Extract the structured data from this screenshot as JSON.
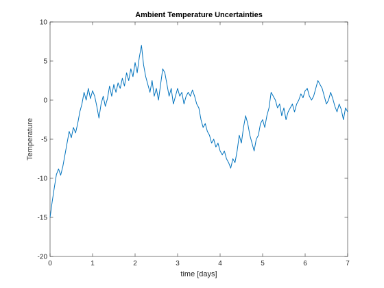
{
  "chart_data": {
    "type": "line",
    "title": "Ambient Temperature Uncertainties",
    "xlabel": "time [days]",
    "ylabel": "Temperature",
    "xlim": [
      0,
      7
    ],
    "ylim": [
      -20,
      10
    ],
    "xticks": [
      0,
      1,
      2,
      3,
      4,
      5,
      6,
      7
    ],
    "yticks": [
      -20,
      -15,
      -10,
      -5,
      0,
      5,
      10
    ],
    "grid": false,
    "line_color": "#0072BD",
    "series": [
      {
        "x": [
          0,
          0.05,
          0.1,
          0.15,
          0.2,
          0.25,
          0.3,
          0.35,
          0.4,
          0.45,
          0.5,
          0.55,
          0.6,
          0.65,
          0.7,
          0.75,
          0.8,
          0.85,
          0.9,
          0.95,
          1.0,
          1.05,
          1.1,
          1.15,
          1.2,
          1.25,
          1.3,
          1.35,
          1.4,
          1.45,
          1.5,
          1.55,
          1.6,
          1.65,
          1.7,
          1.75,
          1.8,
          1.85,
          1.9,
          1.95,
          2.0,
          2.05,
          2.1,
          2.15,
          2.2,
          2.25,
          2.3,
          2.35,
          2.4,
          2.45,
          2.5,
          2.55,
          2.6,
          2.65,
          2.7,
          2.75,
          2.8,
          2.85,
          2.9,
          2.95,
          3.0,
          3.05,
          3.1,
          3.15,
          3.2,
          3.25,
          3.3,
          3.35,
          3.4,
          3.45,
          3.5,
          3.55,
          3.6,
          3.65,
          3.7,
          3.75,
          3.8,
          3.85,
          3.9,
          3.95,
          4.0,
          4.05,
          4.1,
          4.15,
          4.2,
          4.25,
          4.3,
          4.35,
          4.4,
          4.45,
          4.5,
          4.55,
          4.6,
          4.65,
          4.7,
          4.75,
          4.8,
          4.85,
          4.9,
          4.95,
          5.0,
          5.05,
          5.1,
          5.15,
          5.2,
          5.25,
          5.3,
          5.35,
          5.4,
          5.45,
          5.5,
          5.55,
          5.6,
          5.65,
          5.7,
          5.75,
          5.8,
          5.85,
          5.9,
          5.95,
          6.0,
          6.05,
          6.1,
          6.15,
          6.2,
          6.25,
          6.3,
          6.35,
          6.4,
          6.45,
          6.5,
          6.55,
          6.6,
          6.65,
          6.7,
          6.75,
          6.8,
          6.85,
          6.9,
          6.95,
          7.0
        ],
        "values": [
          -15.0,
          -13.0,
          -11.2,
          -9.5,
          -8.8,
          -9.6,
          -8.5,
          -7.0,
          -5.5,
          -4.0,
          -4.8,
          -3.5,
          -4.2,
          -3.0,
          -1.5,
          -0.5,
          1.0,
          0.0,
          1.5,
          0.2,
          1.2,
          0.5,
          -0.8,
          -2.3,
          -0.5,
          0.5,
          -0.8,
          0.2,
          1.8,
          0.5,
          2.0,
          1.0,
          2.2,
          1.5,
          2.8,
          1.8,
          3.5,
          2.5,
          4.0,
          3.0,
          4.8,
          3.5,
          5.5,
          7.0,
          4.5,
          3.0,
          2.0,
          1.0,
          2.5,
          0.5,
          1.5,
          0.0,
          2.0,
          4.0,
          3.5,
          2.0,
          0.5,
          1.5,
          -0.5,
          0.5,
          1.5,
          0.5,
          1.0,
          -0.5,
          0.5,
          1.0,
          0.5,
          1.3,
          0.5,
          -0.5,
          -1.0,
          -2.5,
          -3.5,
          -3.0,
          -4.0,
          -4.5,
          -5.5,
          -5.0,
          -6.0,
          -5.5,
          -6.5,
          -7.0,
          -6.5,
          -7.5,
          -8.0,
          -8.7,
          -7.5,
          -8.0,
          -6.5,
          -4.5,
          -5.5,
          -3.5,
          -2.0,
          -3.0,
          -4.5,
          -5.5,
          -6.5,
          -5.0,
          -4.5,
          -3.0,
          -2.5,
          -3.5,
          -2.0,
          -1.0,
          1.0,
          0.5,
          0.0,
          -1.0,
          -0.5,
          -2.0,
          -1.0,
          -2.5,
          -1.5,
          -1.0,
          -0.5,
          -1.5,
          -0.5,
          0.0,
          0.8,
          0.3,
          1.2,
          1.5,
          0.5,
          0.0,
          0.5,
          1.5,
          2.5,
          2.0,
          1.5,
          0.5,
          -0.5,
          0.0,
          1.0,
          0.2,
          -0.8,
          -1.5,
          -0.5,
          -1.2,
          -2.5,
          -1.0,
          -1.5
        ]
      }
    ]
  }
}
